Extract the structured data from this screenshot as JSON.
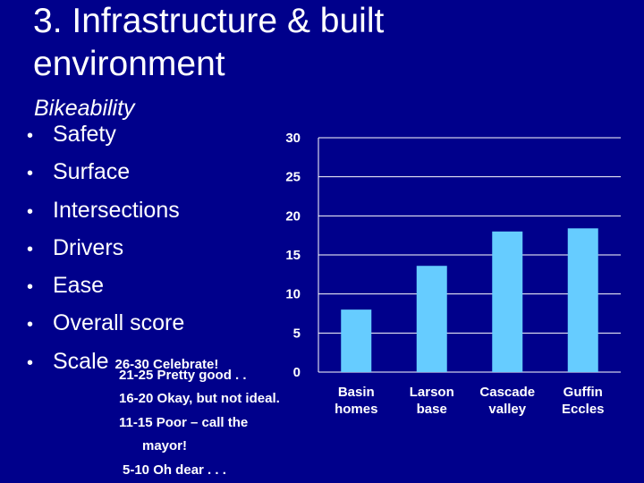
{
  "slide": {
    "title": "3. Infrastructure & built environment",
    "subtitle": "Bikeability",
    "bullets": [
      "Safety",
      "Surface",
      "Intersections",
      "Drivers",
      "Ease",
      "Overall score",
      "Scale"
    ],
    "scale_lines": [
      "26-30 Celebrate!",
      "21-25 Pretty good . .",
      "16-20 Okay, but not ideal.",
      "11-15 Poor – call the",
      "mayor!",
      "5-10 Oh dear . . ."
    ]
  },
  "colors": {
    "background": "#00008b",
    "bar": "#66ccff",
    "text": "#ffffff"
  },
  "chart_data": {
    "type": "bar",
    "categories": [
      [
        "Basin",
        "homes"
      ],
      [
        "Larson",
        "base"
      ],
      [
        "Cascade",
        "valley"
      ],
      [
        "Guffin",
        "Eccles"
      ]
    ],
    "values": [
      8,
      13.6,
      18,
      18.4
    ],
    "yticks": [
      0,
      5,
      10,
      15,
      20,
      25,
      30
    ],
    "ylim": [
      0,
      30
    ],
    "grid": true,
    "title": "",
    "xlabel": "",
    "ylabel": ""
  }
}
